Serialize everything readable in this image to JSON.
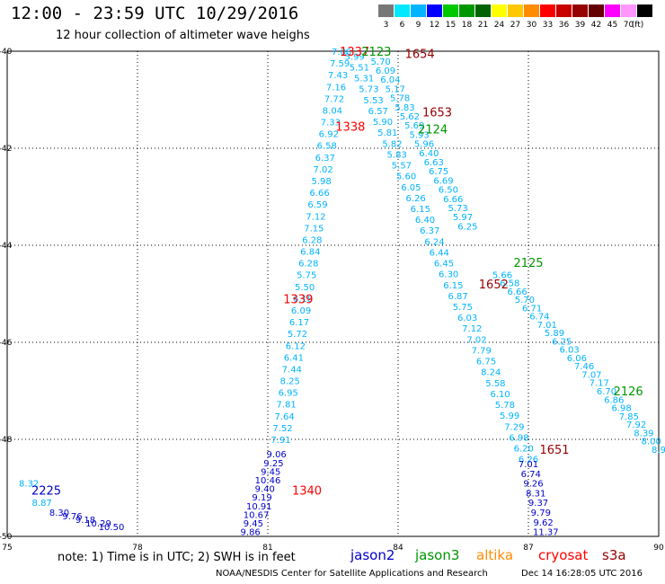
{
  "header": {
    "title": "12:00 - 23:59 UTC 10/29/2016",
    "subtitle": "12 hour collection of altimeter wave heighs"
  },
  "color_scale": {
    "unit": "(ft)",
    "stops": [
      {
        "label": "3",
        "color": "#777777"
      },
      {
        "label": "6",
        "color": "#00e8ff"
      },
      {
        "label": "9",
        "color": "#00b4ff"
      },
      {
        "label": "12",
        "color": "#0000ff"
      },
      {
        "label": "15",
        "color": "#00c800"
      },
      {
        "label": "18",
        "color": "#009600"
      },
      {
        "label": "21",
        "color": "#006400"
      },
      {
        "label": "24",
        "color": "#ffff00"
      },
      {
        "label": "27",
        "color": "#ffc800"
      },
      {
        "label": "30",
        "color": "#ff8c00"
      },
      {
        "label": "33",
        "color": "#ff0000"
      },
      {
        "label": "36",
        "color": "#c80000"
      },
      {
        "label": "39",
        "color": "#960000"
      },
      {
        "label": "42",
        "color": "#640000"
      },
      {
        "label": "45",
        "color": "#ff00ff"
      },
      {
        "label": "70",
        "color": "#ff96ff"
      },
      {
        "label": "",
        "color": "#000000"
      }
    ]
  },
  "map_data": {
    "lon_range": [
      75,
      90
    ],
    "lat_range": [
      -50,
      -40
    ],
    "lon_ticks": [
      {
        "lon": 75,
        "label": "75"
      },
      {
        "lon": 78,
        "label": "78"
      },
      {
        "lon": 81,
        "label": "81"
      },
      {
        "lon": 84,
        "label": "84"
      },
      {
        "lon": 87,
        "label": "87"
      },
      {
        "lon": 90,
        "label": "90"
      }
    ],
    "lat_ticks": [
      {
        "lat": -40,
        "label": "-40"
      },
      {
        "lat": -42,
        "label": "-42"
      },
      {
        "lat": -44,
        "label": "-44"
      },
      {
        "lat": -46,
        "label": "-46"
      },
      {
        "lat": -48,
        "label": "-48"
      },
      {
        "lat": -50,
        "label": "-50"
      }
    ],
    "tracks": [
      {
        "color": "#00b4ff",
        "lon": [
          82.7,
          81.3
        ],
        "lat": [
          -40,
          -48
        ],
        "values": [
          "7.06",
          "7.59",
          "7.43",
          "7.16",
          "7.72",
          "8.04",
          "7.33",
          "6.92",
          "6.58",
          "6.37",
          "7.02",
          "5.98",
          "6.66",
          "6.59",
          "7.12",
          "7.15",
          "6.28",
          "6.84",
          "6.28",
          "5.75",
          "5.50",
          "6.18",
          "6.09",
          "6.17",
          "5.72",
          "6.12",
          "6.41",
          "7.44",
          "8.25",
          "6.95",
          "7.81",
          "7.64",
          "7.52",
          "7.91"
        ]
      },
      {
        "color": "#0000c8",
        "lon": [
          81.2,
          80.6
        ],
        "lat": [
          -48.3,
          -49.9
        ],
        "values": [
          "9.06",
          "9.25",
          "9.45",
          "10.46",
          "9.40",
          "9.19",
          "10.91",
          "10.67",
          "9.45",
          "9.86"
        ]
      },
      {
        "color": "#00b4ff",
        "lon": [
          83.0,
          87.0
        ],
        "lat": [
          -40.1,
          -48.4
        ],
        "values": [
          "5.99",
          "5.51",
          "5.31",
          "5.73",
          "5.53",
          "6.57",
          "5.90",
          "5.81",
          "5.82",
          "5.83",
          "5.57",
          "5.60",
          "6.05",
          "6.26",
          "6.15",
          "6.40",
          "6.37",
          "6.24",
          "6.44",
          "6.45",
          "6.30",
          "6.15",
          "6.87",
          "5.75",
          "6.03",
          "7.12",
          "7.02",
          "7.79",
          "6.75",
          "8.24",
          "5.58",
          "6.10",
          "5.78",
          "5.99",
          "7.29",
          "6.98",
          "6.20",
          "6.26"
        ]
      },
      {
        "color": "#00b4ff",
        "lon": [
          83.6,
          85.6
        ],
        "lat": [
          -40.2,
          -43.6
        ],
        "values": [
          "5.70",
          "6.09",
          "6.04",
          "5.17",
          "5.78",
          "5.83",
          "5.62",
          "5.69",
          "5.93",
          "5.96",
          "6.40",
          "6.63",
          "6.75",
          "6.69",
          "6.50",
          "6.66",
          "5.73",
          "5.97",
          "6.25"
        ]
      },
      {
        "color": "#00b4ff",
        "lon": [
          86.4,
          90.0
        ],
        "lat": [
          -44.6,
          -48.2
        ],
        "values": [
          "5.66",
          "6.58",
          "6.66",
          "5.70",
          "6.71",
          "6.74",
          "7.01",
          "5.89",
          "6.25",
          "6.03",
          "6.06",
          "7.46",
          "7.07",
          "7.17",
          "6.70",
          "6.86",
          "6.98",
          "7.85",
          "7.92",
          "8.39",
          "8.00",
          "8.9"
        ]
      },
      {
        "color": "#0000c8",
        "lon": [
          87.0,
          87.4
        ],
        "lat": [
          -48.5,
          -49.9
        ],
        "values": [
          "7.01",
          "6.74",
          "9.26",
          "8.31",
          "9.37",
          "9.79",
          "9.62",
          "11.37"
        ]
      },
      {
        "color": "#00b4ff",
        "lon": [
          75.5,
          75.8
        ],
        "lat": [
          -48.9,
          -49.3
        ],
        "values": [
          "8.32",
          "8.87"
        ]
      },
      {
        "color": "#0000c8",
        "lon": [
          76.2,
          77.4
        ],
        "lat": [
          -49.5,
          -49.8
        ],
        "values": [
          "8.30",
          "9.76",
          "9.18",
          "10.29",
          "10.50"
        ]
      }
    ],
    "pass_labels": [
      {
        "text": "1337",
        "color": "#ff0000",
        "lon": 83.0,
        "lat": -40.0
      },
      {
        "text": "2123",
        "color": "#009600",
        "lon": 83.5,
        "lat": -40.0
      },
      {
        "text": "1654",
        "color": "#960000",
        "lon": 84.5,
        "lat": -40.05
      },
      {
        "text": "1653",
        "color": "#960000",
        "lon": 84.9,
        "lat": -41.25
      },
      {
        "text": "1338",
        "color": "#ff0000",
        "lon": 82.9,
        "lat": -41.55
      },
      {
        "text": "2124",
        "color": "#009600",
        "lon": 84.8,
        "lat": -41.6
      },
      {
        "text": "2125",
        "color": "#009600",
        "lon": 87.0,
        "lat": -44.35
      },
      {
        "text": "1652",
        "color": "#960000",
        "lon": 86.2,
        "lat": -44.8
      },
      {
        "text": "1339",
        "color": "#ff0000",
        "lon": 81.7,
        "lat": -45.1
      },
      {
        "text": "2126",
        "color": "#009600",
        "lon": 89.3,
        "lat": -47.0
      },
      {
        "text": "1651",
        "color": "#960000",
        "lon": 87.6,
        "lat": -48.2
      },
      {
        "text": "1340",
        "color": "#ff0000",
        "lon": 81.9,
        "lat": -49.05
      },
      {
        "text": "2225",
        "color": "#0000c8",
        "lon": 75.9,
        "lat": -49.05
      }
    ]
  },
  "footer": {
    "note": "note: 1) Time is in UTC; 2) SWH is in feet",
    "satellites": [
      {
        "name": "jason2",
        "color": "#0000c8"
      },
      {
        "name": "jason3",
        "color": "#009600"
      },
      {
        "name": "altika",
        "color": "#ff8c00"
      },
      {
        "name": "cryosat",
        "color": "#ff0000"
      },
      {
        "name": "s3a",
        "color": "#960000"
      }
    ],
    "credit": "NOAA/NESDIS Center for Satellite Applications and Research",
    "timestamp": "Dec 14 16:28:05 UTC 2016"
  }
}
